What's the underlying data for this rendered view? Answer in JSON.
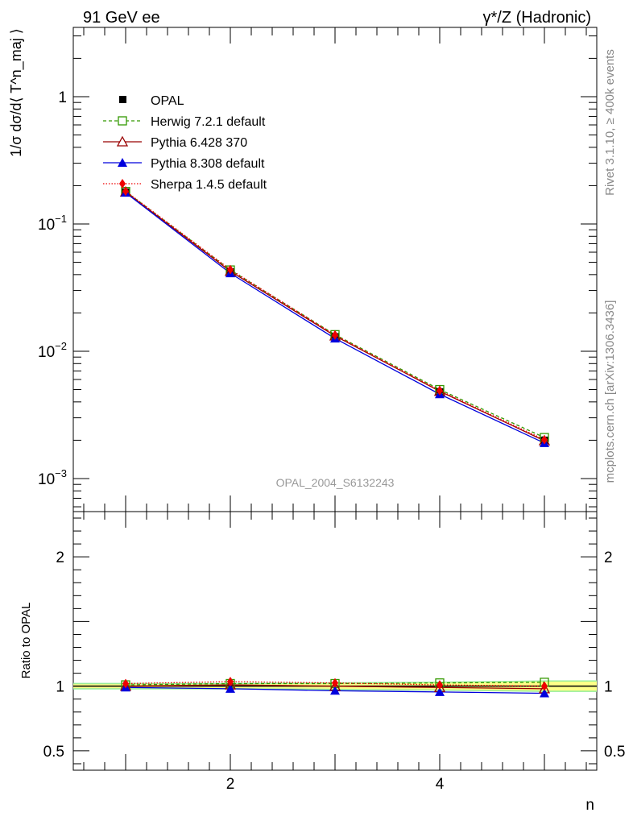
{
  "header": {
    "left_title": "91 GeV ee",
    "right_title": "γ*/Z (Hadronic)"
  },
  "side_text": {
    "rivet": "Rivet 3.1.10, ≥ 400k events",
    "mcplots": "mcplots.cern.ch [arXiv:1306.3436]"
  },
  "watermark": "OPAL_2004_S6132243",
  "colors": {
    "data": "#000000",
    "herwig": "#339900",
    "pythia6": "#990000",
    "pythia8": "#0000dd",
    "sherpa": "#ee0000",
    "band_inner": "#ffff88",
    "band_outer": "#99ee99"
  },
  "chart_data": [
    {
      "type": "line",
      "panel": "main",
      "yscale": "log",
      "ylabel": "1/σ dσ/d⟨ T^n_maj ⟩",
      "xlabel": "n",
      "xlim": [
        0.5,
        5.5
      ],
      "ylim": [
        0.00055,
        3.5
      ],
      "yticks": [
        {
          "value": 1,
          "label": "1"
        },
        {
          "value": 0.1,
          "label": "10^-1"
        },
        {
          "value": 0.01,
          "label": "10^-2"
        },
        {
          "value": 0.001,
          "label": "10^-3"
        }
      ],
      "x": [
        1,
        2,
        3,
        4,
        5
      ],
      "series": [
        {
          "name": "OPAL",
          "key": "data",
          "values": [
            0.178,
            0.042,
            0.013,
            0.0048,
            0.002
          ]
        },
        {
          "name": "Herwig 7.2.1 default",
          "key": "herwig",
          "values": [
            0.18,
            0.0435,
            0.0135,
            0.005,
            0.0021
          ]
        },
        {
          "name": "Pythia 6.428 370",
          "key": "pythia6",
          "values": [
            0.178,
            0.0425,
            0.0132,
            0.00485,
            0.00198
          ]
        },
        {
          "name": "Pythia 8.308 default",
          "key": "pythia8",
          "values": [
            0.176,
            0.041,
            0.0126,
            0.0046,
            0.0019
          ]
        },
        {
          "name": "Sherpa 1.4.5 default",
          "key": "sherpa",
          "values": [
            0.181,
            0.0438,
            0.0134,
            0.0049,
            0.00202
          ]
        }
      ]
    },
    {
      "type": "line",
      "panel": "ratio",
      "ylabel": "Ratio to OPAL",
      "xlabel": "n",
      "xlim": [
        0.5,
        5.5
      ],
      "ylim": [
        0.35,
        2.35
      ],
      "yticks": [
        {
          "value": 2,
          "label": "2"
        },
        {
          "value": 1,
          "label": "1"
        },
        {
          "value": 0.5,
          "label": "0.5"
        }
      ],
      "xticks": [
        {
          "value": 2,
          "label": "2"
        },
        {
          "value": 4,
          "label": "4"
        }
      ],
      "x": [
        1,
        2,
        3,
        4,
        5
      ],
      "band_inner": [
        [
          0.985,
          1.015
        ],
        [
          0.985,
          1.015
        ],
        [
          0.98,
          1.02
        ],
        [
          0.975,
          1.025
        ],
        [
          0.965,
          1.035
        ]
      ],
      "band_outer": [
        [
          0.975,
          1.025
        ],
        [
          0.975,
          1.025
        ],
        [
          0.97,
          1.03
        ],
        [
          0.965,
          1.035
        ],
        [
          0.955,
          1.045
        ]
      ],
      "series": [
        {
          "name": "Herwig 7.2.1 default",
          "key": "herwig",
          "values": [
            1.01,
            1.02,
            1.02,
            1.025,
            1.03
          ]
        },
        {
          "name": "Pythia 6.428 370",
          "key": "pythia6",
          "values": [
            1.0,
            1.01,
            1.0,
            0.99,
            0.98
          ]
        },
        {
          "name": "Pythia 8.308 default",
          "key": "pythia8",
          "values": [
            0.99,
            0.98,
            0.965,
            0.955,
            0.945
          ]
        },
        {
          "name": "Sherpa 1.4.5 default",
          "key": "sherpa",
          "values": [
            1.02,
            1.035,
            1.025,
            1.01,
            1.0
          ]
        }
      ]
    }
  ]
}
